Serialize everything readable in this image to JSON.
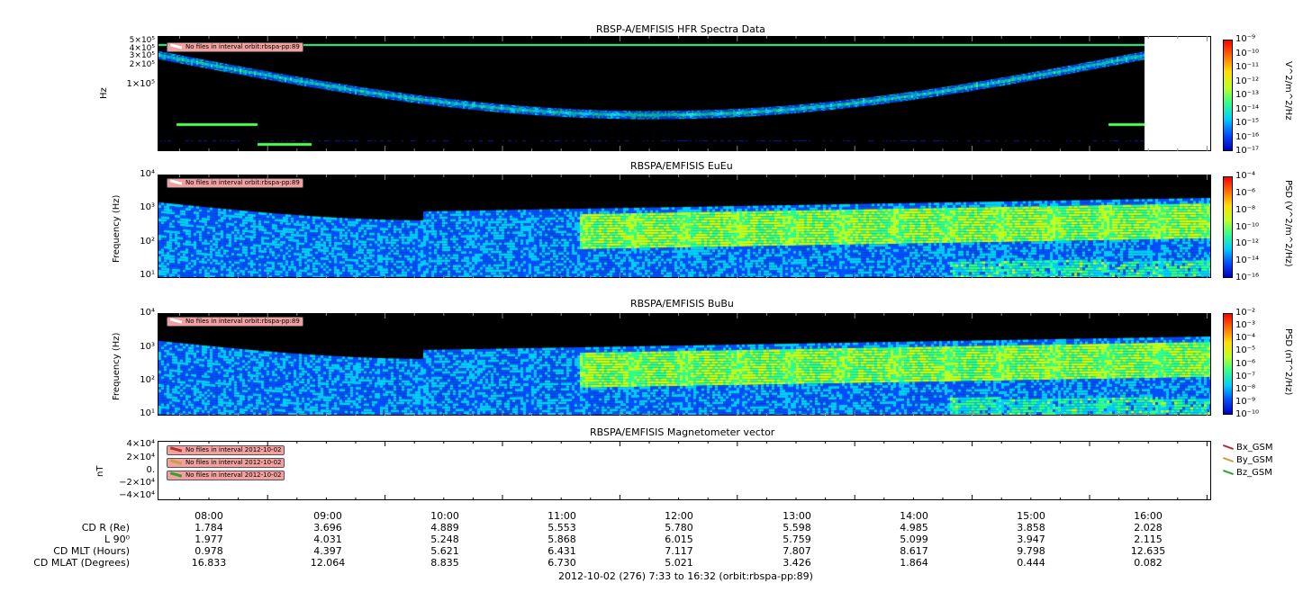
{
  "chart_data": [
    {
      "type": "heatmap",
      "title": "RBSP-A/EMFISIS  HFR Spectra Data",
      "ylabel": "Hz",
      "y_ticks": [
        "5×10⁵",
        "4×10⁵",
        "3×10⁵",
        "2×10⁵",
        "1×10⁵"
      ],
      "colorbar_label": "V^2/m^2/Hz",
      "colorbar_ticks": [
        "10⁻⁹",
        "10⁻¹⁰",
        "10⁻¹¹",
        "10⁻¹²",
        "10⁻¹³",
        "10⁻¹⁴",
        "10⁻¹⁵",
        "10⁻¹⁶",
        "10⁻¹⁷"
      ],
      "notice": "No files in interval orbit:rbspa-pp:89"
    },
    {
      "type": "heatmap",
      "title": "RBSPA/EMFISIS  EuEu",
      "ylabel": "Frequency (Hz)",
      "y_ticks": [
        "10⁴",
        "10³",
        "10²",
        "10¹"
      ],
      "colorbar_label": "PSD (V^2/m^2/Hz)",
      "colorbar_ticks": [
        "10⁻⁴",
        "10⁻⁶",
        "10⁻⁸",
        "10⁻¹⁰",
        "10⁻¹²",
        "10⁻¹⁴",
        "10⁻¹⁶"
      ],
      "notice": "No files in interval orbit:rbspa-pp:89"
    },
    {
      "type": "heatmap",
      "title": "RBSPA/EMFISIS  BuBu",
      "ylabel": "Frequency (Hz)",
      "y_ticks": [
        "10⁴",
        "10³",
        "10²",
        "10¹"
      ],
      "colorbar_label": "PSD (nT^2/Hz)",
      "colorbar_ticks": [
        "10⁻²",
        "10⁻³",
        "10⁻⁴",
        "10⁻⁵",
        "10⁻⁶",
        "10⁻⁷",
        "10⁻⁸",
        "10⁻⁹",
        "10⁻¹⁰"
      ],
      "notice": "No files in interval orbit:rbspa-pp:89"
    },
    {
      "type": "line",
      "title": "RBSPA/EMFISIS  Magnetometer vector",
      "ylabel": "nT",
      "y_ticks": [
        "4×10⁴",
        "2×10⁴",
        "0.",
        "−2×10⁴",
        "−4×10⁴"
      ],
      "series": [
        {
          "name": "Bx_GSM",
          "color": "#b03030",
          "values": []
        },
        {
          "name": "By_GSM",
          "color": "#c8a040",
          "values": []
        },
        {
          "name": "Bz_GSM",
          "color": "#30a030",
          "values": []
        }
      ],
      "notices": [
        "No files in interval 2012-10-02",
        "No files in interval 2012-10-02",
        "No files in interval 2012-10-02"
      ]
    }
  ],
  "x_ticks": [
    "08:00",
    "09:00",
    "10:00",
    "11:00",
    "12:00",
    "13:00",
    "14:00",
    "15:00",
    "16:00"
  ],
  "ephemeris": {
    "rows": [
      {
        "label": "CD R (Re)",
        "values": [
          "1.784",
          "3.696",
          "4.889",
          "5.553",
          "5.780",
          "5.598",
          "4.985",
          "3.858",
          "2.028"
        ]
      },
      {
        "label": "L 90⁰",
        "values": [
          "1.977",
          "4.031",
          "5.248",
          "5.868",
          "6.015",
          "5.759",
          "5.099",
          "3.947",
          "2.115"
        ]
      },
      {
        "label": "CD MLT (Hours)",
        "values": [
          "0.978",
          "4.397",
          "5.621",
          "6.431",
          "7.117",
          "7.807",
          "8.617",
          "9.798",
          "12.635"
        ]
      },
      {
        "label": "CD MLAT (Degrees)",
        "values": [
          "16.833",
          "12.064",
          "8.835",
          "6.730",
          "5.021",
          "3.426",
          "1.864",
          "0.444",
          "0.082"
        ]
      }
    ]
  },
  "footer": "2012-10-02 (276) 7:33 to 16:32 (orbit:rbspa-pp:89)",
  "colors": {
    "jet": [
      "#0000c0",
      "#0050ff",
      "#00d0ff",
      "#30ff90",
      "#c0ff20",
      "#ffe000",
      "#ff7000",
      "#ff0000"
    ]
  }
}
